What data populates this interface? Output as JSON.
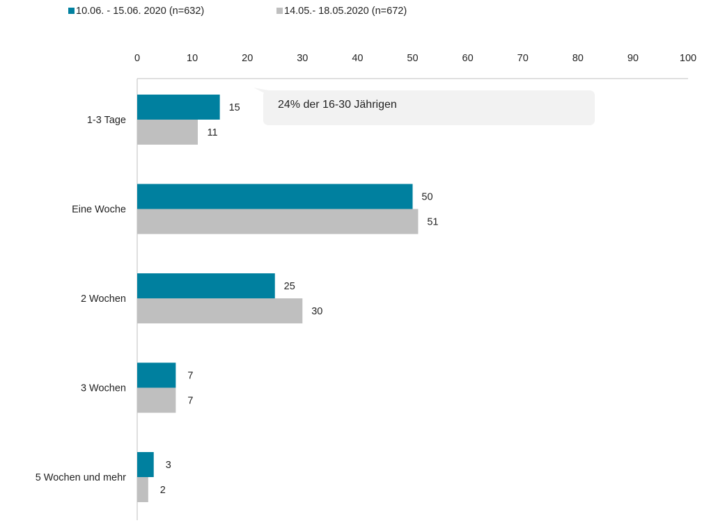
{
  "chart_data": {
    "type": "bar",
    "orientation": "horizontal",
    "categories": [
      "1-3 Tage",
      "Eine Woche",
      "2 Wochen",
      "3 Wochen",
      "5 Wochen und mehr"
    ],
    "series": [
      {
        "name": "10.06. - 15.06. 2020 (n=632)",
        "values": [
          15,
          50,
          25,
          7,
          3
        ],
        "color": "#00809F"
      },
      {
        "name": "14.05.- 18.05.2020 (n=672)",
        "values": [
          11,
          51,
          30,
          7,
          2
        ],
        "color": "#BFBFBF"
      }
    ],
    "xlim": [
      0,
      100
    ],
    "xticks": [
      0,
      10,
      20,
      30,
      40,
      50,
      60,
      70,
      80,
      90,
      100
    ],
    "x_axis_position": "top",
    "grid": false,
    "legend_position": "top-left",
    "data_labels": true,
    "annotations": [
      {
        "text": "24% der 16-30 Jährigen",
        "category": "1-3 Tage",
        "style": "callout"
      }
    ]
  },
  "colors": {
    "axis": "#BFBFBF",
    "callout_bg": "#F2F2F2",
    "text": "#222222"
  }
}
